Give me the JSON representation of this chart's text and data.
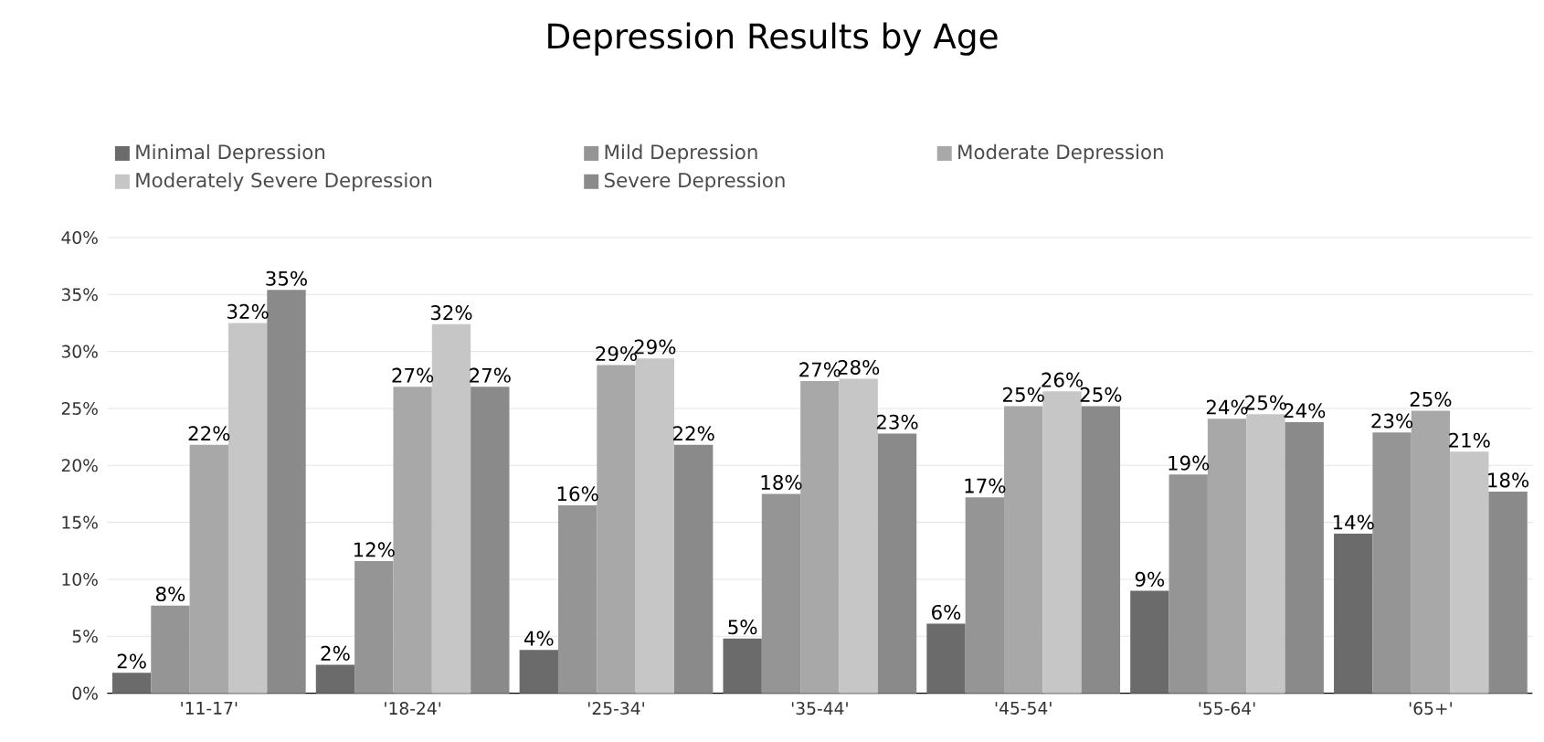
{
  "chart_data": {
    "type": "bar",
    "title": "Depression Results by Age",
    "categories": [
      "'11-17'",
      "'18-24'",
      "'25-34'",
      "'35-44'",
      "'45-54'",
      "'55-64'",
      "'65+'"
    ],
    "series": [
      {
        "name": "Minimal Depression",
        "color": "#6b6b6b",
        "values": [
          1.8,
          2.5,
          3.8,
          4.8,
          6.1,
          9.0,
          14.0
        ],
        "value_labels": [
          "2%",
          "2%",
          "4%",
          "5%",
          "6%",
          "9%",
          "14%"
        ]
      },
      {
        "name": "Mild Depression",
        "color": "#959595",
        "values": [
          7.7,
          11.6,
          16.5,
          17.5,
          17.2,
          19.2,
          22.9
        ],
        "value_labels": [
          "8%",
          "12%",
          "16%",
          "18%",
          "17%",
          "19%",
          "23%"
        ]
      },
      {
        "name": "Moderate Depression",
        "color": "#a8a8a8",
        "values": [
          21.8,
          26.9,
          28.8,
          27.4,
          25.2,
          24.1,
          24.8
        ],
        "value_labels": [
          "22%",
          "27%",
          "29%",
          "27%",
          "25%",
          "24%",
          "25%"
        ]
      },
      {
        "name": "Moderately Severe Depression",
        "color": "#c6c6c6",
        "values": [
          32.5,
          32.4,
          29.4,
          27.6,
          26.5,
          24.5,
          21.2
        ],
        "value_labels": [
          "32%",
          "32%",
          "29%",
          "28%",
          "26%",
          "25%",
          "21%"
        ]
      },
      {
        "name": "Severe Depression",
        "color": "#8a8a8a",
        "values": [
          35.4,
          26.9,
          21.8,
          22.8,
          25.2,
          23.8,
          17.7
        ],
        "value_labels": [
          "35%",
          "27%",
          "22%",
          "23%",
          "25%",
          "24%",
          "18%"
        ]
      }
    ],
    "ylim": [
      0,
      40
    ],
    "yticks": [
      {
        "value": 0,
        "label": "0%"
      },
      {
        "value": 5,
        "label": "5%"
      },
      {
        "value": 10,
        "label": "10%"
      },
      {
        "value": 15,
        "label": "15%"
      },
      {
        "value": 20,
        "label": "20%"
      },
      {
        "value": 25,
        "label": "25%"
      },
      {
        "value": 30,
        "label": "30%"
      },
      {
        "value": 35,
        "label": "35%"
      },
      {
        "value": 40,
        "label": "40%"
      }
    ],
    "grid": "y",
    "legend": "top"
  }
}
